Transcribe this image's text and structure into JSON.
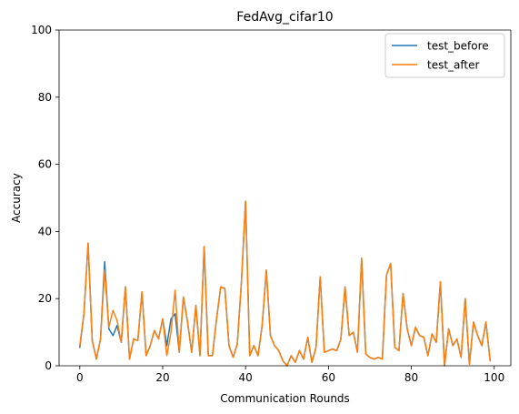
{
  "chart_data": {
    "type": "line",
    "title": "FedAvg_cifar10",
    "xlabel": "Communication Rounds",
    "ylabel": "Accuracy",
    "xlim": [
      -5,
      104
    ],
    "ylim": [
      0,
      100
    ],
    "xticks": [
      0,
      20,
      40,
      60,
      80,
      100
    ],
    "yticks": [
      0,
      20,
      40,
      60,
      80,
      100
    ],
    "grid": false,
    "legend_position": "top-right",
    "series": [
      {
        "name": "test_before",
        "color": "#1f77b4",
        "values": [
          5.5,
          15.5,
          36.5,
          7.5,
          2.0,
          8.0,
          31.0,
          11.0,
          9.0,
          12.0,
          7.0,
          23.5,
          2.0,
          8.0,
          7.5,
          22.0,
          3.0,
          6.0,
          10.5,
          8.0,
          14.0,
          6.0,
          14.0,
          15.5,
          4.0,
          20.5,
          13.0,
          4.0,
          18.0,
          3.0,
          35.5,
          3.0,
          3.0,
          14.0,
          23.5,
          23.0,
          6.0,
          2.5,
          6.5,
          25.0,
          49.0,
          3.0,
          6.0,
          3.0,
          12.0,
          28.5,
          9.0,
          6.0,
          4.5,
          1.5,
          0.0,
          3.0,
          1.0,
          4.5,
          2.0,
          8.5,
          1.0,
          5.5,
          26.5,
          4.0,
          4.5,
          5.0,
          4.5,
          8.0,
          23.5,
          9.0,
          10.0,
          4.0,
          32.0,
          3.5,
          2.5,
          2.0,
          2.5,
          2.0,
          27.0,
          30.5,
          5.5,
          4.5,
          21.5,
          11.0,
          6.0,
          11.5,
          9.0,
          8.5,
          3.0,
          9.5,
          7.0,
          25.0,
          0.0,
          11.0,
          6.0,
          8.0,
          2.5,
          20.0,
          0.5,
          13.0,
          9.0,
          6.0,
          13.0,
          1.5
        ]
      },
      {
        "name": "test_after",
        "color": "#ff7f0e",
        "values": [
          6.0,
          15.5,
          36.5,
          7.5,
          2.0,
          8.0,
          28.5,
          11.5,
          16.5,
          13.5,
          7.0,
          23.5,
          2.0,
          8.0,
          7.5,
          22.0,
          3.0,
          6.0,
          10.5,
          8.0,
          14.0,
          3.0,
          10.0,
          22.5,
          4.0,
          20.5,
          13.0,
          4.0,
          18.0,
          3.0,
          35.5,
          3.0,
          3.0,
          14.0,
          23.5,
          23.0,
          6.0,
          2.5,
          6.5,
          25.0,
          49.0,
          3.0,
          6.0,
          3.0,
          12.0,
          28.5,
          9.0,
          6.0,
          4.5,
          1.5,
          0.0,
          3.0,
          1.0,
          4.5,
          2.0,
          8.5,
          1.0,
          5.5,
          26.5,
          4.0,
          4.5,
          5.0,
          4.5,
          8.0,
          23.5,
          9.0,
          10.0,
          4.0,
          32.0,
          3.5,
          2.5,
          2.0,
          2.5,
          2.0,
          27.0,
          30.5,
          5.5,
          4.5,
          21.5,
          11.0,
          6.0,
          11.5,
          9.0,
          8.5,
          3.0,
          9.5,
          7.0,
          25.0,
          0.0,
          11.0,
          6.0,
          8.0,
          2.5,
          20.0,
          0.5,
          13.0,
          9.0,
          6.0,
          13.0,
          1.5
        ]
      }
    ]
  }
}
